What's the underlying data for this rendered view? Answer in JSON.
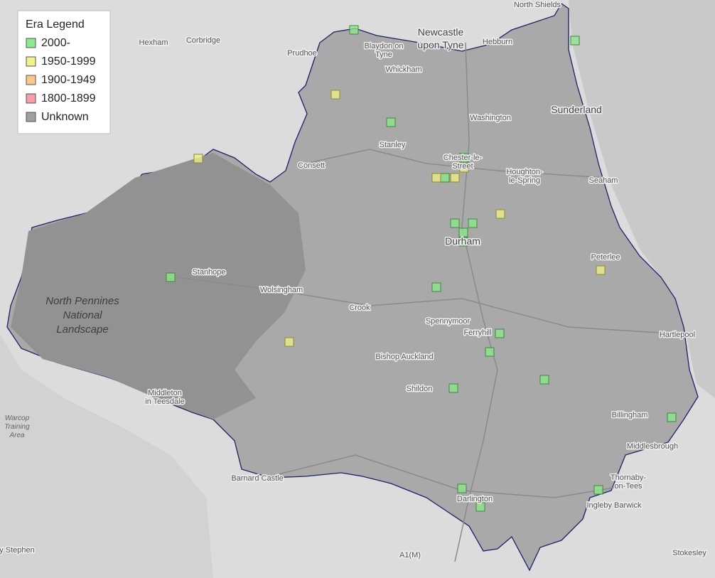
{
  "legend": {
    "title": "Era Legend",
    "items": [
      {
        "label": "2000-",
        "color": "#8ee88e"
      },
      {
        "label": "1950-1999",
        "color": "#f2f28a"
      },
      {
        "label": "1900-1949",
        "color": "#f7c98f"
      },
      {
        "label": "1800-1899",
        "color": "#f5a0a8"
      },
      {
        "label": "Unknown",
        "color": "#a0a0a0"
      }
    ]
  },
  "places": [
    {
      "lines": [
        "North Shields"
      ]
    },
    {
      "lines": [
        "Hexham"
      ]
    },
    {
      "lines": [
        "Corbridge"
      ]
    },
    {
      "lines": [
        "Prudhoe"
      ]
    },
    {
      "lines": [
        "Blaydon on",
        "Tyne"
      ]
    },
    {
      "lines": [
        "Newcastle",
        "upon Tyne"
      ]
    },
    {
      "lines": [
        "Hebburn"
      ]
    },
    {
      "lines": [
        "Whickham"
      ]
    },
    {
      "lines": [
        "Washington"
      ]
    },
    {
      "lines": [
        "Sunderland"
      ]
    },
    {
      "lines": [
        "Stanley"
      ]
    },
    {
      "lines": [
        "Consett"
      ]
    },
    {
      "lines": [
        "Chester-le-",
        "Street"
      ]
    },
    {
      "lines": [
        "Houghton-",
        "le-Spring"
      ]
    },
    {
      "lines": [
        "Seaham"
      ]
    },
    {
      "lines": [
        "Durham"
      ]
    },
    {
      "lines": [
        "Peterlee"
      ]
    },
    {
      "lines": [
        "Stanhope"
      ]
    },
    {
      "lines": [
        "Wolsingham"
      ]
    },
    {
      "lines": [
        "Crook"
      ]
    },
    {
      "lines": [
        "Spennymoor"
      ]
    },
    {
      "lines": [
        "Ferryhill"
      ]
    },
    {
      "lines": [
        "Hartlepool"
      ]
    },
    {
      "lines": [
        "Bishop Auckland"
      ]
    },
    {
      "lines": [
        "Shildon"
      ]
    },
    {
      "lines": [
        "Middleton",
        "in Teesdale"
      ]
    },
    {
      "lines": [
        "North Pennines",
        "National",
        "Landscape"
      ]
    },
    {
      "lines": [
        "Warcop",
        "Training",
        "Area"
      ]
    },
    {
      "lines": [
        "Billingham"
      ]
    },
    {
      "lines": [
        "Middlesbrough"
      ]
    },
    {
      "lines": [
        "Thornaby-",
        "on-Tees"
      ]
    },
    {
      "lines": [
        "Ingleby Barwick"
      ]
    },
    {
      "lines": [
        "Barnard Castle"
      ]
    },
    {
      "lines": [
        "Darlington"
      ]
    },
    {
      "lines": [
        "Stokesley"
      ]
    },
    {
      "lines": [
        "y Stephen"
      ]
    },
    {
      "lines": [
        "A1(M)"
      ]
    }
  ]
}
